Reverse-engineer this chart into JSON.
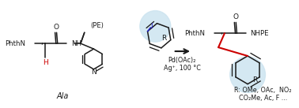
{
  "bg_color": "#ffffff",
  "light_circle_color": "#cde4f0",
  "red_color": "#cc0000",
  "blue_color": "#2222cc",
  "bond_color": "#1a1a1a",
  "reagents_line1": "Pd(OAc)₂",
  "reagents_line2": "Ag⁺, 100 °C",
  "label_ala": "Ala",
  "label_R": "R",
  "label_PE": "(PE)",
  "label_PhthN_left": "PhthN",
  "label_PhthN_right": "PhthN",
  "label_NHPE": "NHPE",
  "label_R_list1": "R: OMe, OAc,  NO₂",
  "label_R_list2": "CO₂Me, Ac, F ..."
}
